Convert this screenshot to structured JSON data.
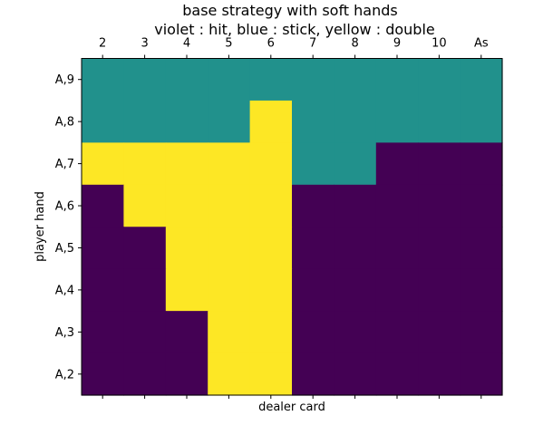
{
  "chart_data": {
    "type": "heatmap",
    "title": "base strategy with soft hands",
    "subtitle": "violet : hit, blue : stick, yellow : double",
    "xlabel": "dealer card",
    "ylabel": "player hand",
    "x_tick_position": "top",
    "x_categories": [
      "2",
      "3",
      "4",
      "5",
      "6",
      "7",
      "8",
      "9",
      "10",
      "As"
    ],
    "y_categories": [
      "A,9",
      "A,8",
      "A,7",
      "A,6",
      "A,5",
      "A,4",
      "A,3",
      "A,2"
    ],
    "legend": {
      "hit": "#440154",
      "stick": "#21918c",
      "double": "#fde725"
    },
    "cells": [
      [
        "stick",
        "stick",
        "stick",
        "stick",
        "stick",
        "stick",
        "stick",
        "stick",
        "stick",
        "stick"
      ],
      [
        "stick",
        "stick",
        "stick",
        "stick",
        "double",
        "stick",
        "stick",
        "stick",
        "stick",
        "stick"
      ],
      [
        "double",
        "double",
        "double",
        "double",
        "double",
        "stick",
        "stick",
        "hit",
        "hit",
        "hit"
      ],
      [
        "hit",
        "double",
        "double",
        "double",
        "double",
        "hit",
        "hit",
        "hit",
        "hit",
        "hit"
      ],
      [
        "hit",
        "hit",
        "double",
        "double",
        "double",
        "hit",
        "hit",
        "hit",
        "hit",
        "hit"
      ],
      [
        "hit",
        "hit",
        "double",
        "double",
        "double",
        "hit",
        "hit",
        "hit",
        "hit",
        "hit"
      ],
      [
        "hit",
        "hit",
        "hit",
        "double",
        "double",
        "hit",
        "hit",
        "hit",
        "hit",
        "hit"
      ],
      [
        "hit",
        "hit",
        "hit",
        "double",
        "double",
        "hit",
        "hit",
        "hit",
        "hit",
        "hit"
      ]
    ]
  }
}
